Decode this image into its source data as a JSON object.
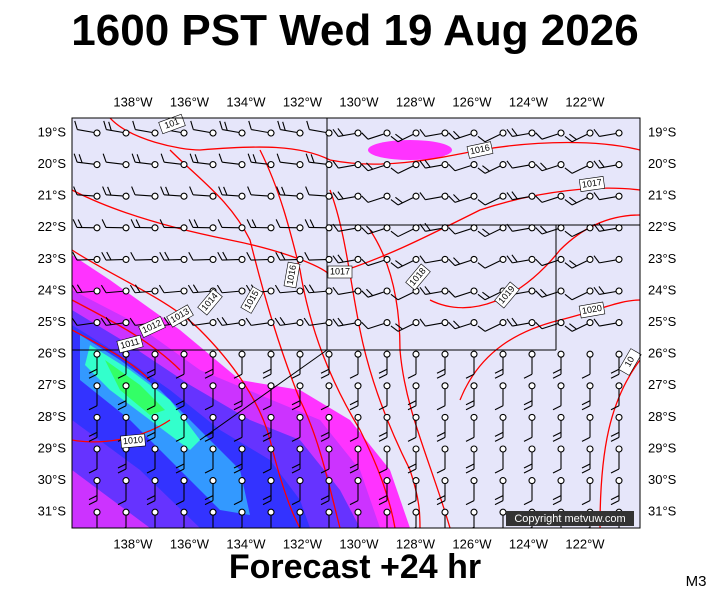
{
  "header": {
    "title": "1600 PST Wed 19 Aug 2026"
  },
  "map": {
    "lon_labels": [
      "138°W",
      "136°W",
      "134°W",
      "132°W",
      "130°W",
      "128°W",
      "126°W",
      "124°W",
      "122°W"
    ],
    "lat_labels": [
      "19°S",
      "20°S",
      "21°S",
      "22°S",
      "23°S",
      "24°S",
      "25°S",
      "26°S",
      "27°S",
      "28°S",
      "29°S",
      "30°S",
      "31°S"
    ],
    "isobar_labels": [
      "101",
      "1016",
      "1017",
      "1017",
      "1018",
      "1019",
      "1020",
      "1015",
      "1016",
      "1014",
      "1013",
      "1012",
      "1011",
      "1010",
      "10"
    ],
    "copyright": "Copyright metvuw.com"
  },
  "footer": {
    "forecast": "Forecast +24 hr",
    "model": "M3"
  }
}
